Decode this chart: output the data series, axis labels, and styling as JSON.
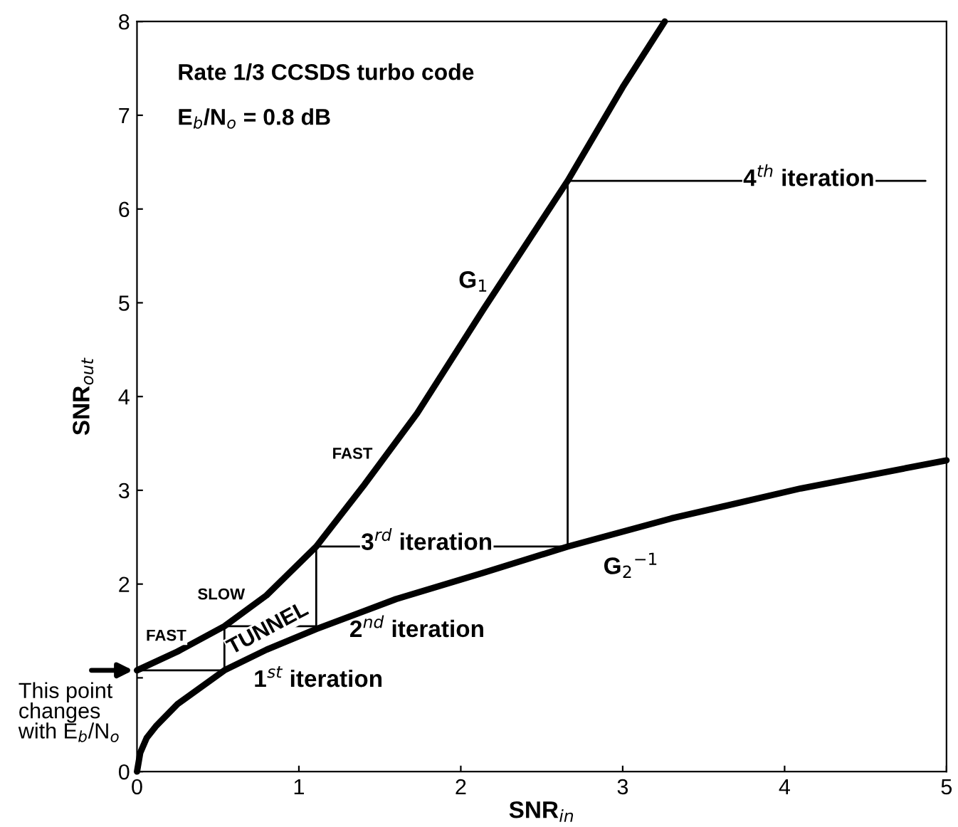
{
  "chart_data": {
    "type": "line",
    "xlabel": "SNR$_{in}$",
    "ylabel": "SNR$_{out}$",
    "xlim": [
      0,
      5
    ],
    "ylim": [
      0,
      8
    ],
    "xticks": [
      0,
      1,
      2,
      3,
      4,
      5
    ],
    "yticks": [
      0,
      {
        "value": 1,
        "label": null
      },
      2,
      3,
      4,
      5,
      6,
      7,
      8
    ],
    "grid": false,
    "legend": false,
    "marker": "none",
    "line_style": "solid",
    "series": [
      {
        "name": "G$_{1}$",
        "color": "#000000",
        "x": [
          0,
          0.25,
          0.54,
          0.8,
          1.107,
          1.4,
          1.73,
          2.14,
          2.66,
          3.0,
          3.26
        ],
        "values": [
          1.08,
          1.28,
          1.55,
          1.88,
          2.4,
          3.05,
          3.82,
          4.93,
          6.3,
          7.3,
          8.0
        ]
      },
      {
        "name": "G$_{2}$$^{−1}$",
        "color": "#000000",
        "x": [
          0,
          0.02,
          0.06,
          0.12,
          0.25,
          0.54,
          0.8,
          1.107,
          1.6,
          2.14,
          2.66,
          3.3,
          4.1,
          5
        ],
        "values": [
          0,
          0.2,
          0.36,
          0.49,
          0.72,
          1.08,
          1.3,
          1.52,
          1.84,
          2.12,
          2.4,
          2.7,
          3.02,
          3.32
        ]
      },
      {
        "color": "#000000",
        "x": [
          0,
          0.54,
          0.54,
          1.107,
          1.107,
          2.66,
          2.66,
          4.87
        ],
        "values": [
          1.08,
          1.08,
          1.55,
          1.55,
          2.4,
          2.4,
          6.3,
          6.3
        ]
      }
    ],
    "annotations": [
      "Rate 1/3 CCSDS turbo code",
      "E$_{b}$/N$_{o}$ = 0.8 dB",
      {
        "text": "This point\nchanges\nwith E$_{b}$/N$_{o}$",
        "x": 0,
        "y": 1.08
      },
      {
        "text": "FAST",
        "x": 0.18,
        "y": 1.44
      },
      {
        "text": "SLOW",
        "x": 0.52,
        "y": 1.88
      },
      {
        "text": "TUNNEL",
        "x": 0.81,
        "y": 1.52
      },
      {
        "text": "FAST",
        "x": 1.33,
        "y": 3.38
      },
      "1$^{st}$ iteration",
      "2$^{nd}$ iteration",
      {
        "text": "3$^{rd}$ iteration",
        "x": 1.79,
        "y": 2.43
      },
      {
        "text": "4$^{th}$ iteration",
        "x": 4.15,
        "y": 6.31
      }
    ]
  }
}
